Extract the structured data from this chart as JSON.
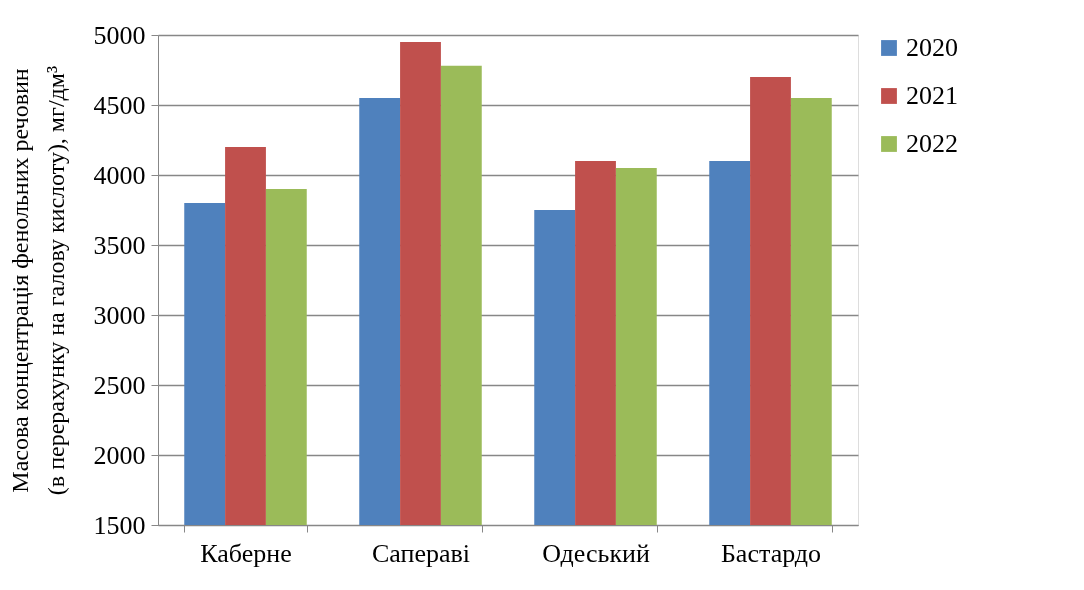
{
  "chart_data": {
    "type": "bar",
    "ylabel": "Масова концентрація фенольних речовин\n(в перерахунку на галову кислоту), мг/дм³",
    "categories": [
      "Каберне",
      "Сапераві",
      "Одеський",
      "Бастардо"
    ],
    "series": [
      {
        "name": "2020",
        "color": "#4f81bd",
        "values": [
          3800,
          4550,
          3750,
          4100
        ]
      },
      {
        "name": "2021",
        "color": "#c0504d",
        "values": [
          4200,
          4950,
          4100,
          4700
        ]
      },
      {
        "name": "2022",
        "color": "#9bbb59",
        "values": [
          3900,
          4780,
          4050,
          4550
        ]
      }
    ],
    "ylim": [
      1500,
      5000
    ],
    "yticks": [
      1500,
      2000,
      2500,
      3000,
      3500,
      4000,
      4500,
      5000
    ],
    "grid": "y",
    "legend": "right"
  }
}
